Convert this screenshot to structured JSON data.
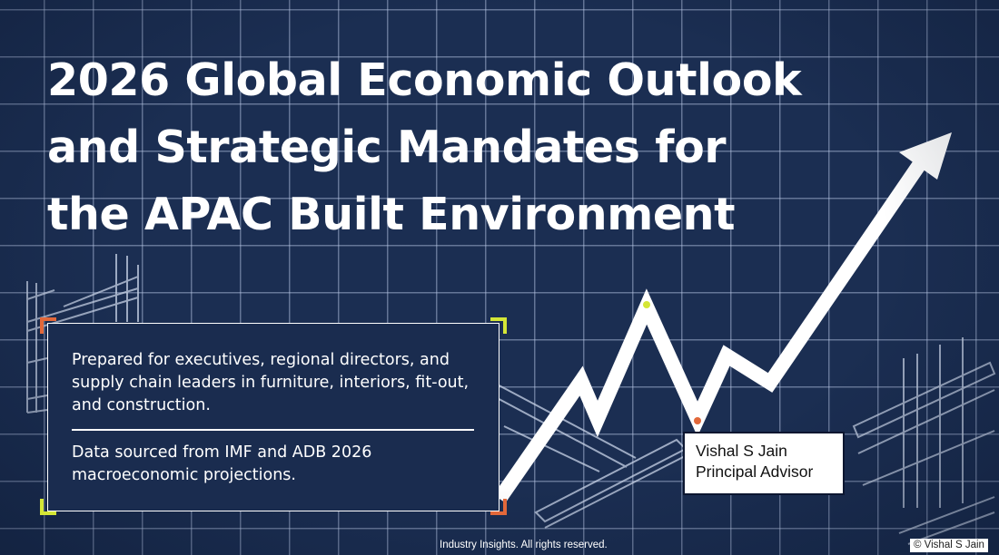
{
  "slide": {
    "title_lines": [
      "2026 Global Economic Outlook",
      "and Strategic Mandates for",
      "the APAC Built Environment"
    ],
    "info_box": {
      "audience": "Prepared for executives, regional directors, and supply chain leaders in furniture, interiors, fit-out, and construction.",
      "source": "Data sourced from IMF and ADB 2026 macroeconomic projections."
    },
    "author": {
      "name": "Vishal S Jain",
      "role": "Principal Advisor"
    },
    "footer": "Industry Insights. All rights reserved.",
    "watermark": "© Vishal S Jain"
  },
  "icons": [
    "growth-arrow-icon",
    "scaffolding-illustration",
    "steel-beam-illustration"
  ],
  "colors": {
    "background": "#1b2e52",
    "grid": "#becdeb",
    "text": "#ffffff",
    "accent_orange": "#e2683a",
    "accent_yellow": "#d4e636"
  }
}
